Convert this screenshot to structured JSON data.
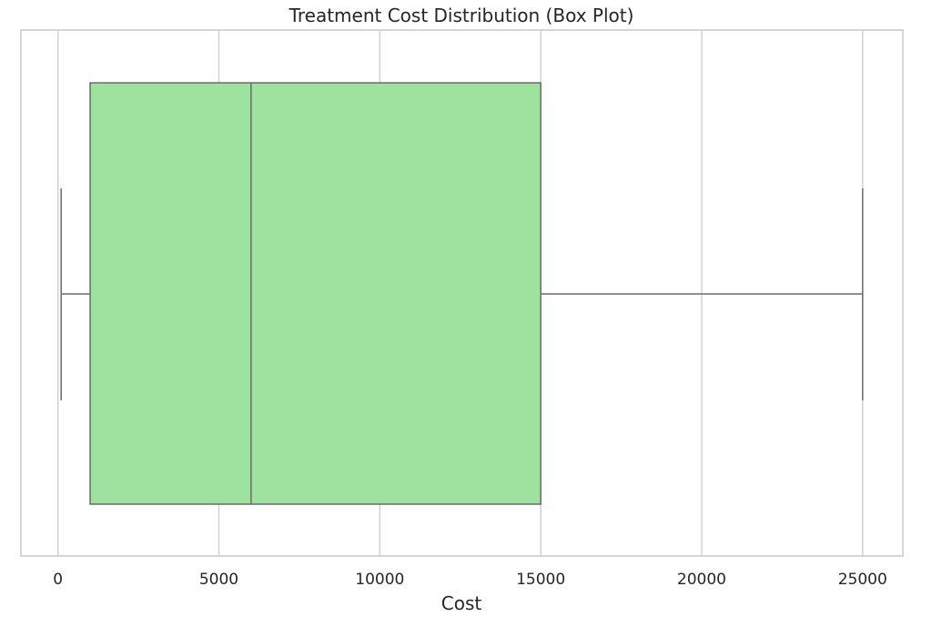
{
  "chart_data": {
    "type": "box",
    "title": "Treatment Cost Distribution (Box Plot)",
    "xlabel": "Cost",
    "ylabel": "",
    "orientation": "horizontal",
    "xlim": [
      -1150,
      26250
    ],
    "xticks": [
      0,
      5000,
      10000,
      15000,
      20000,
      25000
    ],
    "xtick_labels": [
      "0",
      "5000",
      "10000",
      "15000",
      "20000",
      "25000"
    ],
    "grid": "vertical",
    "box": {
      "min": 100,
      "q1": 1000,
      "median": 6000,
      "q3": 15000,
      "max": 25000
    },
    "colors": {
      "box_fill": "#9de29e",
      "box_edge": "#6b6b6b",
      "grid": "#d2d2d2",
      "frame": "#cccccc",
      "text": "#262626"
    }
  }
}
